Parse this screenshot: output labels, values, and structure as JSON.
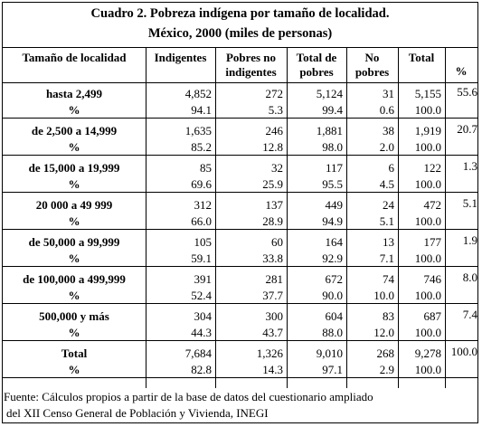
{
  "title": "Cuadro 2. Pobreza indígena por tamaño de localidad.",
  "subtitle": "México, 2000 (miles de personas)",
  "headers": {
    "c0": "Tamaño de localidad",
    "c1": "Indigentes",
    "c2a": "Pobres no",
    "c2b": "indigentes",
    "c3a": "Total de",
    "c3b": "pobres",
    "c4a": "No",
    "c4b": "pobres",
    "c5": "Total",
    "c6": "%"
  },
  "rows": [
    {
      "label": "hasta 2,499",
      "v": [
        "4,852",
        "272",
        "5,124",
        "31",
        "5,155"
      ],
      "sub": "%",
      "p": [
        "94.1",
        "5.3",
        "99.4",
        "0.6",
        "100.0"
      ],
      "share": "55.6"
    },
    {
      "label": "de 2,500 a 14,999",
      "v": [
        "1,635",
        "246",
        "1,881",
        "38",
        "1,919"
      ],
      "sub": "%",
      "p": [
        "85.2",
        "12.8",
        "98.0",
        "2.0",
        "100.0"
      ],
      "share": "20.7"
    },
    {
      "label": "de 15,000 a 19,999",
      "v": [
        "85",
        "32",
        "117",
        "6",
        "122"
      ],
      "sub": "%",
      "p": [
        "69.6",
        "25.9",
        "95.5",
        "4.5",
        "100.0"
      ],
      "share": "1.3"
    },
    {
      "label": "20 000 a 49 999",
      "v": [
        "312",
        "137",
        "449",
        "24",
        "472"
      ],
      "sub": "%",
      "p": [
        "66.0",
        "28.9",
        "94.9",
        "5.1",
        "100.0"
      ],
      "share": "5.1"
    },
    {
      "label": "de 50,000 a 99,999",
      "v": [
        "105",
        "60",
        "164",
        "13",
        "177"
      ],
      "sub": "%",
      "p": [
        "59.1",
        "33.8",
        "92.9",
        "7.1",
        "100.0"
      ],
      "share": "1.9"
    },
    {
      "label": "de 100,000 a 499,999",
      "v": [
        "391",
        "281",
        "672",
        "74",
        "746"
      ],
      "sub": "%",
      "p": [
        "52.4",
        "37.7",
        "90.0",
        "10.0",
        "100.0"
      ],
      "share": "8.0"
    },
    {
      "label": "500,000 y más",
      "v": [
        "304",
        "300",
        "604",
        "83",
        "687"
      ],
      "sub": "%",
      "p": [
        "44.3",
        "43.7",
        "88.0",
        "12.0",
        "100.0"
      ],
      "share": "7.4"
    },
    {
      "label": "Total",
      "v": [
        "7,684",
        "1,326",
        "9,010",
        "268",
        "9,278"
      ],
      "sub": "%",
      "p": [
        "82.8",
        "14.3",
        "97.1",
        "2.9",
        "100.0"
      ],
      "share": "100.0"
    }
  ],
  "footer": {
    "line1": "Fuente: Cálculos propios a partir de la base de datos del cuestionario ampliado",
    "line2": "del XII Censo General de Población y Vivienda, INEGI"
  }
}
